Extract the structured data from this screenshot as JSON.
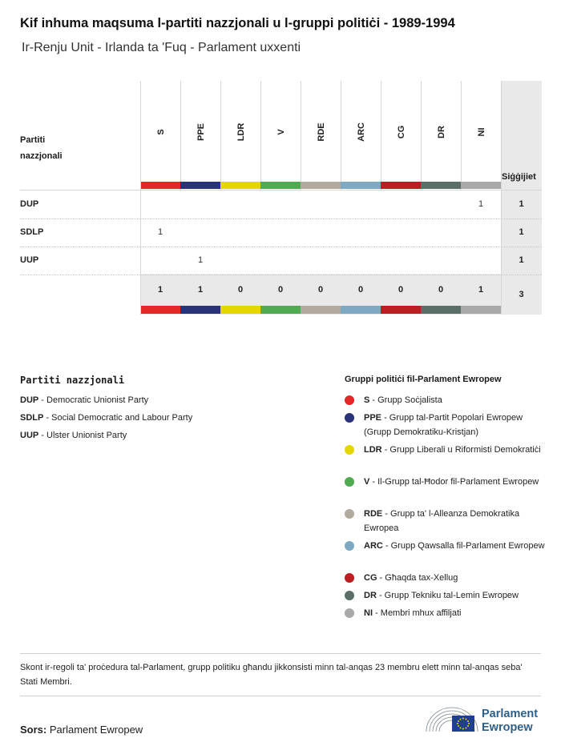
{
  "title": "Kif inhuma maqsuma l-partiti nazzjonali u l-gruppi politiċi - 1989-1994",
  "subtitle": "Ir-Renju Unit - Irlanda ta 'Fuq - Parlament uxxenti",
  "table": {
    "party_header": "Partiti nazzjonali",
    "total_header": "Siġġijiet",
    "columns": [
      {
        "code": "S",
        "color": "#e32726"
      },
      {
        "code": "PPE",
        "color": "#293377"
      },
      {
        "code": "LDR",
        "color": "#e6d600"
      },
      {
        "code": "V",
        "color": "#4faa52"
      },
      {
        "code": "RDE",
        "color": "#b3aa9f"
      },
      {
        "code": "ARC",
        "color": "#7da9c2"
      },
      {
        "code": "CG",
        "color": "#bb1f21"
      },
      {
        "code": "DR",
        "color": "#5b6e67"
      },
      {
        "code": "NI",
        "color": "#a9a9a9"
      }
    ],
    "rows": [
      {
        "party": "DUP",
        "cells": [
          "",
          "",
          "",
          "",
          "",
          "",
          "",
          "",
          "1"
        ],
        "total": "1"
      },
      {
        "party": "SDLP",
        "cells": [
          "1",
          "",
          "",
          "",
          "",
          "",
          "",
          "",
          ""
        ],
        "total": "1"
      },
      {
        "party": "UUP",
        "cells": [
          "",
          "1",
          "",
          "",
          "",
          "",
          "",
          "",
          ""
        ],
        "total": "1"
      }
    ],
    "column_totals": [
      "1",
      "1",
      "0",
      "0",
      "0",
      "0",
      "0",
      "0",
      "1"
    ],
    "grand_total": "3"
  },
  "chart_data": {
    "type": "table",
    "title": "Kif inhuma maqsuma l-partiti nazzjonali u l-gruppi politiċi - 1989-1994",
    "subtitle": "Ir-Renju Unit - Irlanda ta 'Fuq - Parlament uxxenti",
    "categories": [
      "S",
      "PPE",
      "LDR",
      "V",
      "RDE",
      "ARC",
      "CG",
      "DR",
      "NI"
    ],
    "series": [
      {
        "name": "DUP",
        "values": [
          0,
          0,
          0,
          0,
          0,
          0,
          0,
          0,
          1
        ]
      },
      {
        "name": "SDLP",
        "values": [
          1,
          0,
          0,
          0,
          0,
          0,
          0,
          0,
          0
        ]
      },
      {
        "name": "UUP",
        "values": [
          0,
          1,
          0,
          0,
          0,
          0,
          0,
          0,
          0
        ]
      }
    ],
    "row_totals": [
      1,
      1,
      1
    ],
    "column_totals": [
      1,
      1,
      0,
      0,
      0,
      0,
      0,
      0,
      1
    ],
    "grand_total": 3
  },
  "legend_national": {
    "title": "Partiti nazzjonali",
    "items": [
      {
        "code": "DUP",
        "name": "Democratic Unionist Party"
      },
      {
        "code": "SDLP",
        "name": "Social Democratic and Labour Party"
      },
      {
        "code": "UUP",
        "name": "Ulster Unionist Party"
      }
    ]
  },
  "legend_groups": {
    "title": "Gruppi politiċi fil-Parlament Ewropew",
    "items": [
      {
        "code": "S",
        "name": "Grupp Soċjalista",
        "color": "#e32726"
      },
      {
        "code": "PPE",
        "name": "Grupp tal-Partit Popolari Ewropew (Grupp Demokratiku-Kristjan)",
        "color": "#293377"
      },
      {
        "code": "LDR",
        "name": "Grupp Liberali u Riformisti Demokratiċi",
        "color": "#e6d600"
      },
      {
        "code": "V",
        "name": "Il-Grupp tal-Ħodor fil-Parlament Ewropew",
        "color": "#4faa52"
      },
      {
        "code": "RDE",
        "name": "Grupp ta' l-Alleanza Demokratika Ewropea",
        "color": "#b3aa9f"
      },
      {
        "code": "ARC",
        "name": "Grupp Qawsalla fil-Parlament Ewropew",
        "color": "#7da9c2"
      },
      {
        "code": "CG",
        "name": "Għaqda tax-Xellug",
        "color": "#bb1f21"
      },
      {
        "code": "DR",
        "name": "Grupp Tekniku tal-Lemin Ewropew",
        "color": "#5b6e67"
      },
      {
        "code": "NI",
        "name": "Membri mhux affiljati",
        "color": "#a9a9a9"
      }
    ]
  },
  "note": "Skont ir-regoli ta' proċedura tal-Parlament, grupp politiku għandu jikkonsisti minn tal-anqas 23 membru elett minn tal-anqas seba' Stati Membri.",
  "source": {
    "label": "Sors:",
    "value": "Parlament Ewropew"
  },
  "logo": {
    "line1": "Parlament",
    "line2": "Ewropew",
    "brand_color": "#2d5f8b",
    "flag_color": "#1f3f8f"
  }
}
